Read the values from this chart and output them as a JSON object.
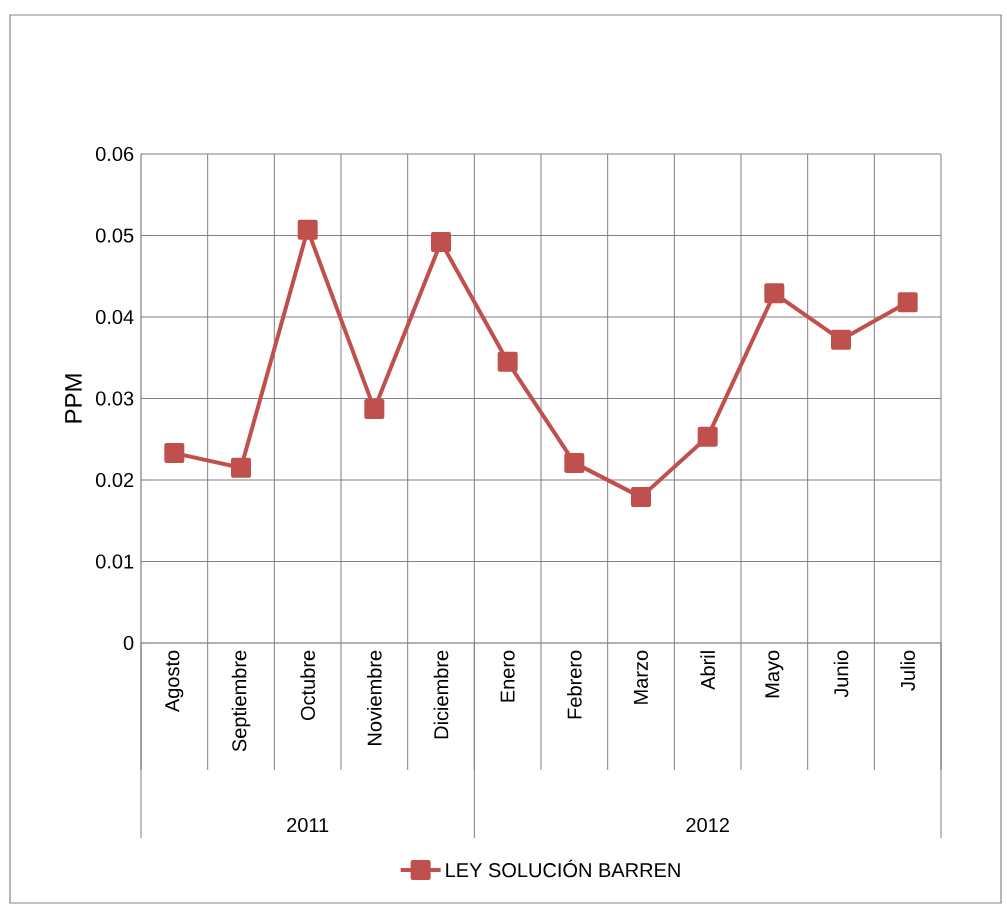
{
  "chart_data": {
    "type": "line",
    "ylabel": "PPM",
    "categories": [
      "Agosto",
      "Septiembre",
      "Octubre",
      "Noviembre",
      "Diciembre",
      "Enero",
      "Febrero",
      "Marzo",
      "Abril",
      "Mayo",
      "Junio",
      "Julio"
    ],
    "series": [
      {
        "name": "LEY SOLUCIÓN BARREN",
        "color": "#c0504d",
        "values": [
          0.0233,
          0.0215,
          0.0507,
          0.0287,
          0.0492,
          0.0345,
          0.0221,
          0.0179,
          0.0253,
          0.0429,
          0.0372,
          0.0418
        ]
      }
    ],
    "ylim": [
      0,
      0.06
    ],
    "yticks": [
      0,
      0.01,
      0.02,
      0.03,
      0.04,
      0.05,
      0.06
    ],
    "annotations": [
      "2011",
      "2012"
    ],
    "grid": true,
    "legend": "bottom",
    "marker": "square",
    "line_style": "solid"
  }
}
